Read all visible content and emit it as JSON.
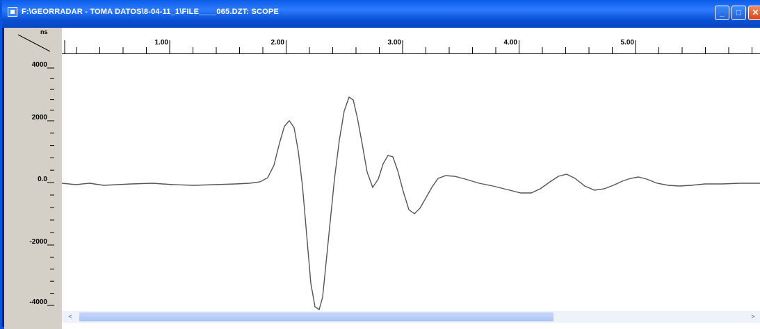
{
  "window": {
    "title": "F:\\GEORRADAR - TOMA DATOS\\8-04-11_1\\FILE____065.DZT:  SCOPE",
    "controls": {
      "minimize": "_",
      "maximize": "□",
      "close": "✕"
    }
  },
  "corner": {
    "units": "ns"
  },
  "yaxis": {
    "ticks": [
      "4000",
      "2000",
      "0.0",
      "-2000",
      "-4000"
    ]
  },
  "xaxis": {
    "ticks": [
      "1.00",
      "2.00",
      "3.00",
      "4.00",
      "5.00"
    ]
  },
  "scrollbar": {
    "left_arrow": "<",
    "right_arrow": ">"
  },
  "colors": {
    "trace": "#555555",
    "panel": "#d4d0c8",
    "titlebar": "#0a5ae0"
  }
}
